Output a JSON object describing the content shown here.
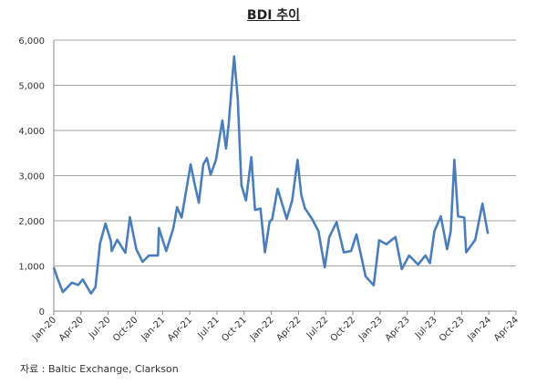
{
  "chart_data": {
    "type": "line",
    "title": "BDI 추이",
    "xlabel": "",
    "ylabel": "",
    "ylim": [
      0,
      6000
    ],
    "yticks": [
      "0",
      "1,000",
      "2,000",
      "3,000",
      "4,000",
      "5,000",
      "6,000"
    ],
    "ytick_values": [
      0,
      1000,
      2000,
      3000,
      4000,
      5000,
      6000
    ],
    "xticks": [
      "Jan-20",
      "Apr-20",
      "Jul-20",
      "Oct-20",
      "Jan-21",
      "Apr-21",
      "Jul-21",
      "Oct-21",
      "Jan-22",
      "Apr-22",
      "Jul-22",
      "Oct-22",
      "Jan-23",
      "Apr-23",
      "Jul-23",
      "Oct-23",
      "Jan-24",
      "Apr-24"
    ],
    "x_unit": "months since Jan-20",
    "xlim": [
      0,
      51
    ],
    "grid": true,
    "series": [
      {
        "name": "BDI",
        "color": "#4a7ebb",
        "x": [
          0,
          0.4,
          1.0,
          2.0,
          2.7,
          3.2,
          4.1,
          4.6,
          5.1,
          5.7,
          6.3,
          6.4,
          7.0,
          7.9,
          8.4,
          9.1,
          9.8,
          10.5,
          11.5,
          11.6,
          12.4,
          13.2,
          13.6,
          14.1,
          15.1,
          15.5,
          16.0,
          16.5,
          16.9,
          17.3,
          17.9,
          18.6,
          19.0,
          19.3,
          19.9,
          20.3,
          20.7,
          21.2,
          21.8,
          22.2,
          22.8,
          23.3,
          23.8,
          24.1,
          24.7,
          25.7,
          26.3,
          26.9,
          27.3,
          27.7,
          28.5,
          29.2,
          29.9,
          30.4,
          31.2,
          32.0,
          32.8,
          33.4,
          34.4,
          35.3,
          35.9,
          36.7,
          37.7,
          38.4,
          39.2,
          40.2,
          41.0,
          41.5,
          42.0,
          42.7,
          43.4,
          43.8,
          44.2,
          44.6,
          45.3,
          45.5,
          46.5,
          47.3,
          47.9
        ],
        "values": [
          970,
          730,
          420,
          630,
          580,
          700,
          390,
          530,
          1500,
          1940,
          1550,
          1330,
          1580,
          1290,
          2080,
          1370,
          1090,
          1230,
          1230,
          1840,
          1330,
          1840,
          2300,
          2070,
          3250,
          2850,
          2400,
          3250,
          3390,
          3020,
          3350,
          4220,
          3600,
          4160,
          5640,
          4700,
          2790,
          2450,
          3410,
          2240,
          2270,
          1300,
          1970,
          2040,
          2710,
          2040,
          2450,
          3350,
          2580,
          2280,
          2040,
          1770,
          970,
          1640,
          1970,
          1300,
          1330,
          1700,
          770,
          570,
          1570,
          1480,
          1640,
          930,
          1230,
          1030,
          1230,
          1060,
          1770,
          2100,
          1370,
          1770,
          3350,
          2100,
          2070,
          1300,
          1580,
          2380,
          1710
        ]
      }
    ]
  },
  "source": "자료 : Baltic Exchange, Clarkson"
}
